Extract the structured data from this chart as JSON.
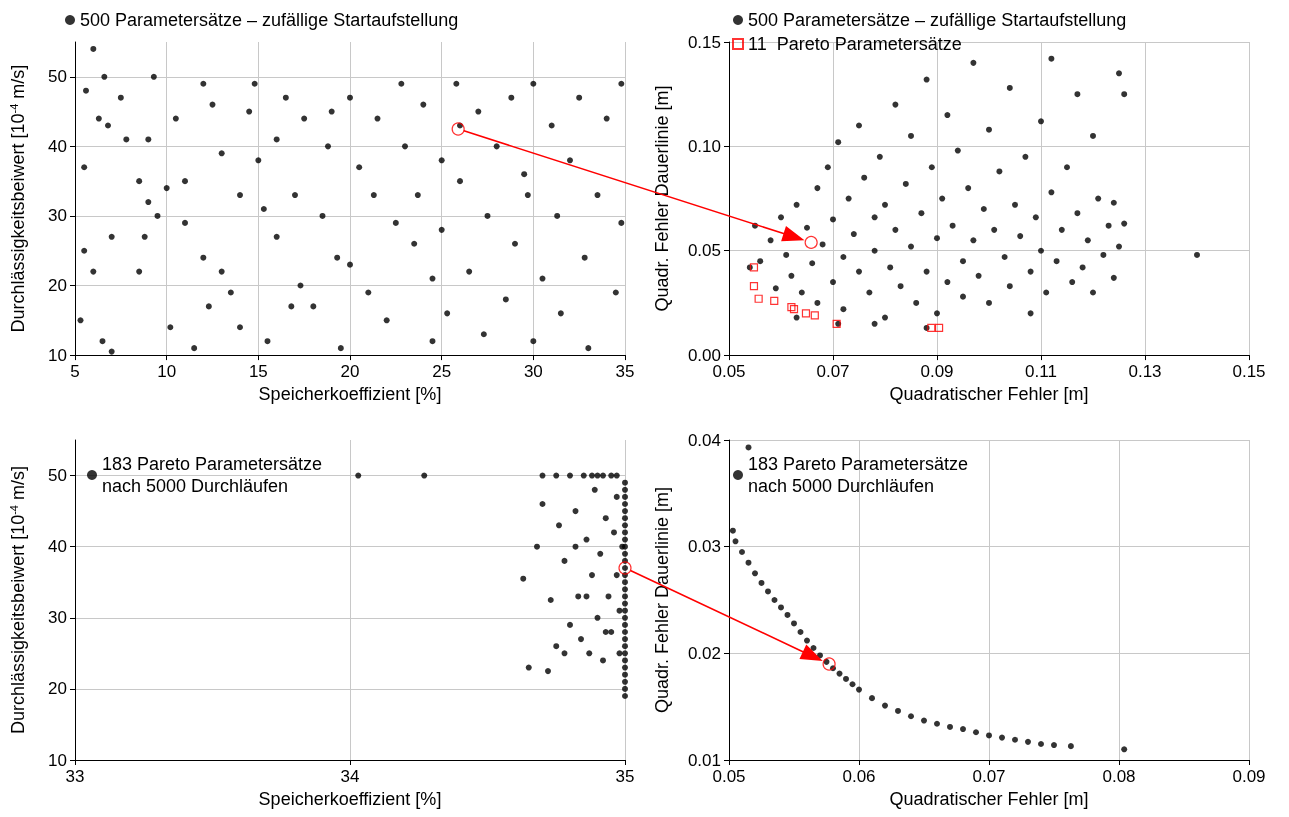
{
  "chart_data": [
    {
      "type": "scatter",
      "xlabel": "Speicherkoeffizient [%]",
      "ylabel": "Durchlässigkeitsbeiwert [10$^{-4}$ m/s]",
      "xlim": [
        5,
        35
      ],
      "ylim": [
        10,
        55
      ],
      "xticks": [
        5,
        10,
        15,
        20,
        25,
        30,
        35
      ],
      "yticks": [
        10,
        20,
        30,
        40,
        50
      ],
      "grid": true,
      "legend": "top left",
      "marker": "circle",
      "series": [
        {
          "name": "500 Parametersätze – zufällige Startaufstellung",
          "color": "#000000",
          "x": [
            5.3,
            5.5,
            5.6,
            6,
            6.3,
            6.6,
            6.8,
            7,
            7.5,
            7.8,
            6.5,
            7,
            8.5,
            9,
            9.3,
            9,
            9.5,
            10,
            8.5,
            8.8,
            10.5,
            11,
            11,
            11.5,
            12,
            12.3,
            12.5,
            13,
            13,
            13.5,
            14,
            14.5,
            14.8,
            15,
            15.3,
            15.5,
            16,
            16,
            16.5,
            17,
            17.3,
            17.5,
            18,
            18.5,
            18.8,
            19.3,
            19.5,
            20,
            20.5,
            20,
            21,
            21.3,
            21.5,
            22,
            22.5,
            23,
            23.5,
            23.7,
            24,
            24.5,
            24.5,
            25,
            25,
            25.3,
            25.8,
            26,
            26.5,
            27,
            27.3,
            27.5,
            28,
            28.5,
            28.8,
            29,
            29.5,
            30,
            30,
            30.5,
            31,
            31.3,
            31.5,
            32,
            32.5,
            32.8,
            33,
            33.5,
            34,
            34.5,
            34.8,
            34.8,
            12,
            19,
            26,
            16.8,
            10.2,
            22.8,
            29.7,
            6,
            5.5,
            14
          ],
          "values": [
            15,
            37,
            48,
            54,
            44,
            50,
            43,
            27,
            47,
            41,
            12,
            10.5,
            35,
            41,
            50,
            32,
            30,
            34,
            22,
            27,
            44,
            35,
            29,
            11,
            49,
            17,
            46,
            39,
            22,
            19,
            14,
            45,
            49,
            38,
            31,
            12,
            41,
            27,
            47,
            33,
            20,
            44,
            17,
            30,
            40,
            24,
            11,
            47,
            37,
            23,
            19,
            33,
            44,
            15,
            29,
            40,
            26,
            33,
            46,
            12,
            21,
            38,
            28,
            16,
            49,
            35,
            22,
            45,
            13,
            30,
            40,
            18,
            47,
            26,
            36,
            49,
            12,
            21,
            43,
            30,
            16,
            38,
            47,
            24,
            11,
            33,
            44,
            19,
            29,
            49,
            24,
            45,
            43,
            17,
            14,
            49,
            33,
            22,
            25,
            33
          ]
        },
        {
          "color": "#ff0000",
          "x": [
            25.9
          ],
          "values": [
            42.5
          ]
        }
      ]
    },
    {
      "type": "scatter",
      "xlabel": "Quadratischer Fehler [m]",
      "ylabel": "Quadr. Fehler Dauerlinie [m]",
      "xlim": [
        0.05,
        0.15
      ],
      "ylim": [
        0,
        0.15
      ],
      "xticks": [
        0.05,
        0.07,
        0.09,
        0.11,
        0.13,
        0.15
      ],
      "yticks": [
        {
          "value": 0,
          "label": "0.00"
        },
        0.05,
        {
          "value": 0.1,
          "label": "0.10"
        },
        0.15
      ],
      "grid": true,
      "legend": "top left",
      "marker": "circle",
      "series": [
        {
          "name": "500 Parametersätze – zufällige Startaufstellung",
          "color": "#000000",
          "x": [
            0.055,
            0.056,
            0.058,
            0.059,
            0.06,
            0.061,
            0.062,
            0.063,
            0.064,
            0.065,
            0.066,
            0.067,
            0.067,
            0.068,
            0.069,
            0.07,
            0.07,
            0.071,
            0.072,
            0.072,
            0.073,
            0.074,
            0.075,
            0.075,
            0.076,
            0.077,
            0.078,
            0.078,
            0.079,
            0.08,
            0.08,
            0.081,
            0.082,
            0.082,
            0.083,
            0.084,
            0.085,
            0.085,
            0.086,
            0.087,
            0.088,
            0.088,
            0.089,
            0.09,
            0.09,
            0.091,
            0.092,
            0.092,
            0.093,
            0.094,
            0.095,
            0.095,
            0.096,
            0.097,
            0.097,
            0.098,
            0.099,
            0.1,
            0.1,
            0.101,
            0.102,
            0.103,
            0.104,
            0.104,
            0.105,
            0.106,
            0.107,
            0.108,
            0.108,
            0.109,
            0.11,
            0.11,
            0.111,
            0.112,
            0.112,
            0.113,
            0.114,
            0.115,
            0.116,
            0.117,
            0.117,
            0.118,
            0.119,
            0.12,
            0.12,
            0.121,
            0.122,
            0.123,
            0.124,
            0.124,
            0.125,
            0.125,
            0.126,
            0.126,
            0.14,
            0.054,
            0.063,
            0.071,
            0.088,
            0.078
          ],
          "values": [
            0.062,
            0.045,
            0.055,
            0.032,
            0.066,
            0.048,
            0.038,
            0.072,
            0.03,
            0.061,
            0.044,
            0.08,
            0.025,
            0.053,
            0.09,
            0.035,
            0.065,
            0.102,
            0.047,
            0.022,
            0.075,
            0.058,
            0.04,
            0.11,
            0.085,
            0.03,
            0.066,
            0.05,
            0.095,
            0.018,
            0.072,
            0.042,
            0.12,
            0.06,
            0.033,
            0.082,
            0.052,
            0.105,
            0.025,
            0.068,
            0.132,
            0.04,
            0.09,
            0.056,
            0.02,
            0.075,
            0.115,
            0.035,
            0.062,
            0.098,
            0.045,
            0.028,
            0.08,
            0.14,
            0.055,
            0.038,
            0.07,
            0.108,
            0.025,
            0.06,
            0.088,
            0.047,
            0.128,
            0.033,
            0.072,
            0.057,
            0.095,
            0.04,
            0.02,
            0.066,
            0.112,
            0.05,
            0.03,
            0.142,
            0.078,
            0.045,
            0.06,
            0.09,
            0.035,
            0.125,
            0.068,
            0.042,
            0.055,
            0.105,
            0.03,
            0.075,
            0.048,
            0.062,
            0.037,
            0.073,
            0.135,
            0.052,
            0.063,
            0.125,
            0.048,
            0.042,
            0.018,
            0.015,
            0.013,
            0.015
          ]
        },
        {
          "name": "11  Pareto Parametersätze",
          "color": "#ff0000",
          "marker": "square",
          "x": [
            0.0548,
            0.0548,
            0.0557,
            0.0587,
            0.062,
            0.0625,
            0.0648,
            0.0665,
            0.0707,
            0.0889,
            0.0904
          ],
          "values": [
            0.042,
            0.033,
            0.027,
            0.026,
            0.023,
            0.022,
            0.02,
            0.019,
            0.015,
            0.013,
            0.013
          ]
        },
        {
          "color": "#ff0000",
          "x": [
            0.0658
          ],
          "values": [
            0.054
          ]
        }
      ]
    },
    {
      "type": "scatter",
      "xlabel": "Speicherkoeffizient [%]",
      "ylabel": "Durchlässigkeitsbeiwert [10$^{-4}$ m/s]",
      "xlim": [
        33,
        35
      ],
      "ylim": [
        10,
        55
      ],
      "xticks": [
        33,
        34,
        35
      ],
      "yticks": [
        10,
        20,
        30,
        40,
        50
      ],
      "grid": true,
      "legend": "top left",
      "marker": "circle",
      "series": [
        {
          "name": "183 Pareto Parametersätze\nnach 5000 Durchläufen",
          "color": "#000000",
          "x": [
            34.03,
            34.27,
            34.65,
            34.63,
            34.7,
            34.72,
            34.73,
            34.75,
            34.76,
            34.78,
            34.78,
            34.8,
            34.8,
            34.82,
            34.83,
            34.84,
            34.85,
            34.86,
            34.87,
            34.88,
            34.89,
            34.9,
            34.9,
            34.91,
            34.92,
            34.93,
            34.94,
            34.95,
            34.95,
            34.96,
            34.97,
            34.97,
            34.98,
            34.98,
            34.99,
            35,
            35,
            35,
            35,
            35,
            35,
            35,
            35,
            35,
            35,
            35,
            35,
            35,
            35,
            35,
            35,
            35,
            35,
            35,
            35,
            35,
            35,
            35,
            35,
            35,
            35,
            35,
            35,
            35,
            35,
            35,
            34.75,
            34.88,
            34.92,
            34.97,
            34.68,
            34.7,
            34.82,
            34.86,
            34.93
          ],
          "values": [
            50,
            50,
            23,
            35.5,
            50,
            22.5,
            32.5,
            26,
            43,
            38,
            25,
            50,
            29,
            45,
            33,
            27,
            50,
            41,
            25,
            36,
            48,
            30,
            50,
            39,
            24,
            44,
            33,
            28,
            50,
            42,
            36,
            47,
            31,
            25,
            40,
            19,
            20,
            21,
            22,
            23,
            24,
            25,
            26,
            27,
            28,
            29,
            30,
            31,
            32,
            33,
            34,
            35,
            36,
            37,
            38,
            39,
            40,
            41,
            42,
            43,
            44,
            45,
            46,
            47,
            48,
            49,
            50,
            50,
            50,
            50,
            40,
            46,
            40,
            33,
            28
          ]
        },
        {
          "color": "#ff0000",
          "x": [
            35
          ],
          "values": [
            37
          ]
        }
      ]
    },
    {
      "type": "scatter",
      "xlabel": "Quadratischer Fehler [m]",
      "ylabel": "Quadr. Fehler Dauerlinie [m]",
      "xlim": [
        0.05,
        0.09
      ],
      "ylim": [
        0.01,
        0.04
      ],
      "xticks": [
        0.05,
        0.06,
        0.07,
        0.08,
        0.09
      ],
      "yticks": [
        0.01,
        0.02,
        0.03,
        0.04
      ],
      "grid": true,
      "legend": "top left",
      "marker": "circle",
      "series": [
        {
          "name": "183 Pareto Parametersätze\nnach 5000 Durchläufen",
          "color": "#000000",
          "x": [
            0.0503,
            0.0505,
            0.051,
            0.0515,
            0.052,
            0.0525,
            0.053,
            0.0535,
            0.054,
            0.0545,
            0.055,
            0.0555,
            0.056,
            0.0565,
            0.057,
            0.0575,
            0.058,
            0.0585,
            0.059,
            0.0595,
            0.06,
            0.061,
            0.062,
            0.063,
            0.064,
            0.065,
            0.066,
            0.067,
            0.068,
            0.069,
            0.07,
            0.071,
            0.072,
            0.073,
            0.074,
            0.075,
            0.0763,
            0.0804,
            0.0515
          ],
          "values": [
            0.0315,
            0.0305,
            0.0295,
            0.0285,
            0.0275,
            0.0266,
            0.0258,
            0.025,
            0.0243,
            0.0236,
            0.0228,
            0.022,
            0.0212,
            0.0205,
            0.0198,
            0.0192,
            0.0186,
            0.0181,
            0.0176,
            0.0171,
            0.0166,
            0.0158,
            0.0151,
            0.0146,
            0.0141,
            0.0137,
            0.0134,
            0.0131,
            0.0129,
            0.0126,
            0.0123,
            0.0121,
            0.0119,
            0.0117,
            0.0115,
            0.0114,
            0.0113,
            0.011,
            0.0393
          ]
        },
        {
          "color": "#ff0000",
          "x": [
            0.0577
          ],
          "values": [
            0.019
          ]
        }
      ]
    }
  ]
}
